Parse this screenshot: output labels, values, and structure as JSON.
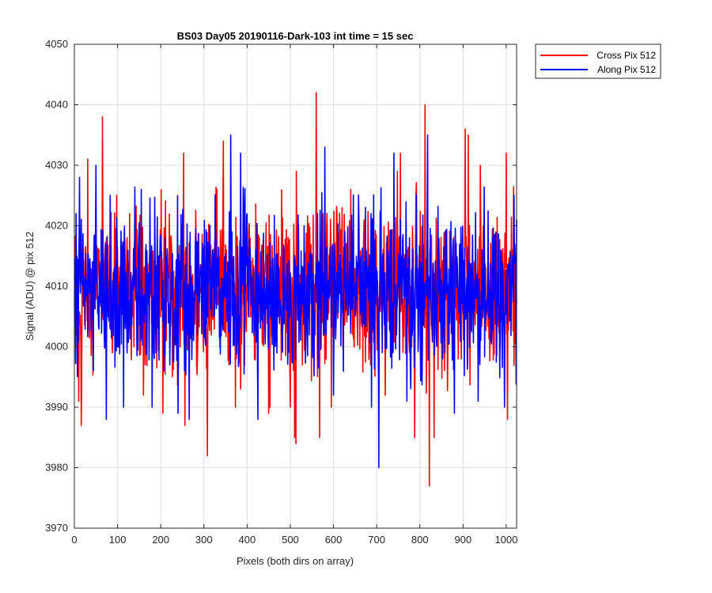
{
  "chart_data": {
    "type": "line",
    "title": "BS03 Day05 20190116-Dark-103 int time = 15 sec",
    "xlabel": "Pixels (both dirs on array)",
    "ylabel": "Signal (ADU) @ pix 512",
    "xlim": [
      0,
      1024
    ],
    "ylim": [
      3970,
      4050
    ],
    "xticks": [
      0,
      100,
      200,
      300,
      400,
      500,
      600,
      700,
      800,
      900,
      1000
    ],
    "yticks": [
      3970,
      3980,
      3990,
      4000,
      4010,
      4020,
      4030,
      4040,
      4050
    ],
    "grid": true,
    "legend_position": "top-right, outside plot",
    "series": [
      {
        "name": "Cross Pix 512",
        "color": "#ff0000",
        "baseline": 4009,
        "peaks": [
          {
            "x": 10,
            "y": 3991
          },
          {
            "x": 16,
            "y": 3987
          },
          {
            "x": 31,
            "y": 4031
          },
          {
            "x": 65,
            "y": 4038
          },
          {
            "x": 128,
            "y": 4022
          },
          {
            "x": 160,
            "y": 3992
          },
          {
            "x": 205,
            "y": 3989
          },
          {
            "x": 253,
            "y": 4032
          },
          {
            "x": 256,
            "y": 3987
          },
          {
            "x": 308,
            "y": 3982
          },
          {
            "x": 330,
            "y": 4026
          },
          {
            "x": 345,
            "y": 4034
          },
          {
            "x": 385,
            "y": 3993
          },
          {
            "x": 450,
            "y": 3989
          },
          {
            "x": 510,
            "y": 3985
          },
          {
            "x": 513,
            "y": 3984
          },
          {
            "x": 560,
            "y": 4042
          },
          {
            "x": 568,
            "y": 3985
          },
          {
            "x": 640,
            "y": 4026
          },
          {
            "x": 720,
            "y": 3992
          },
          {
            "x": 755,
            "y": 4032
          },
          {
            "x": 788,
            "y": 3985
          },
          {
            "x": 812,
            "y": 4040
          },
          {
            "x": 822,
            "y": 3977
          },
          {
            "x": 833,
            "y": 3985
          },
          {
            "x": 905,
            "y": 4036
          },
          {
            "x": 912,
            "y": 4035
          },
          {
            "x": 940,
            "y": 4030
          },
          {
            "x": 1000,
            "y": 4032
          },
          {
            "x": 1003,
            "y": 3988
          }
        ]
      },
      {
        "name": "Along Pix 512",
        "color": "#0000ff",
        "baseline": 4009,
        "peaks": [
          {
            "x": 4,
            "y": 4022
          },
          {
            "x": 12,
            "y": 4028
          },
          {
            "x": 50,
            "y": 4030
          },
          {
            "x": 74,
            "y": 3988
          },
          {
            "x": 155,
            "y": 4026
          },
          {
            "x": 180,
            "y": 3990
          },
          {
            "x": 240,
            "y": 3989
          },
          {
            "x": 266,
            "y": 3988
          },
          {
            "x": 362,
            "y": 4035
          },
          {
            "x": 385,
            "y": 4032
          },
          {
            "x": 425,
            "y": 3988
          },
          {
            "x": 580,
            "y": 4033
          },
          {
            "x": 600,
            "y": 3992
          },
          {
            "x": 705,
            "y": 3980
          },
          {
            "x": 740,
            "y": 4032
          },
          {
            "x": 770,
            "y": 3991
          },
          {
            "x": 818,
            "y": 4035
          },
          {
            "x": 880,
            "y": 3989
          },
          {
            "x": 935,
            "y": 3991
          },
          {
            "x": 1018,
            "y": 4025
          }
        ]
      }
    ]
  }
}
